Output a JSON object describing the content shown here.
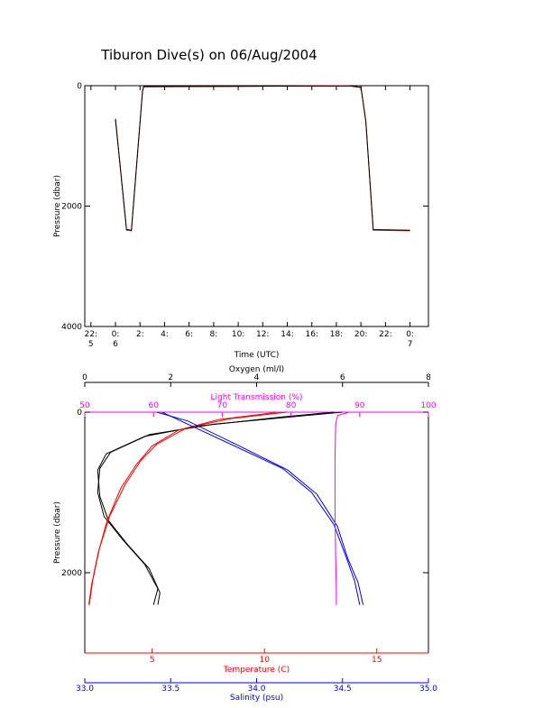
{
  "title": "Tiburon Dive(s) on 06/Aug/2004",
  "colors": {
    "axis": "#000000",
    "oxygen": "#000000",
    "temperature": "#ff0000",
    "salinity": "#0000ff",
    "transmission": "#ff00ff"
  },
  "chart_data": [
    {
      "type": "line",
      "title": "Tiburon Dive(s) on 06/Aug/2004",
      "xlabel": "Time (UTC)",
      "ylabel": "Pressure (dbar)",
      "xlim": [
        -1.5,
        26.5
      ],
      "ylim": [
        4000,
        0
      ],
      "y_inverted": true,
      "x_ticks": [
        -1,
        1,
        3,
        5,
        7,
        9,
        11,
        13,
        15,
        17,
        19,
        21,
        23,
        25
      ],
      "x_tick_labels": [
        "22:\n5",
        "0:\n6",
        "2:",
        "4:",
        "6:",
        "8:",
        "10:",
        "12:",
        "14:",
        "16:",
        "18:",
        "20:",
        "22:",
        "0:\n7"
      ],
      "y_ticks": [
        0,
        2000,
        4000
      ],
      "y_tick_labels": [
        "0",
        "2000",
        "4000"
      ],
      "series": [
        {
          "color": "#ff0000",
          "x": [
            1.0,
            1.9,
            2.3,
            3.2,
            3.3,
            20.0,
            21.0,
            21.4,
            22.0,
            25.0
          ],
          "y": [
            560,
            2400,
            2410,
            100,
            20,
            0,
            30,
            600,
            2400,
            2410
          ]
        },
        {
          "color": "#000000",
          "x": [
            1.0,
            1.9,
            2.3,
            3.2,
            3.3,
            20.0,
            21.0,
            21.4,
            22.0,
            25.0
          ],
          "y": [
            550,
            2390,
            2400,
            90,
            15,
            5,
            25,
            590,
            2390,
            2400
          ]
        }
      ]
    },
    {
      "type": "line",
      "ylabel": "Pressure (dbar)",
      "ylim": [
        3000,
        0
      ],
      "y_inverted": true,
      "y_ticks": [
        0,
        2000
      ],
      "y_tick_labels": [
        "0",
        "2000"
      ],
      "x_axes": [
        {
          "label": "Oxygen (ml/l)",
          "position": "top",
          "color": "#000000",
          "range": [
            0,
            8
          ],
          "ticks": [
            0,
            2,
            4,
            6,
            8
          ],
          "tick_labels": [
            "0",
            "2",
            "4",
            "6",
            "8"
          ]
        },
        {
          "label": "Light Transmission (%)",
          "position": "top",
          "color": "#ff00ff",
          "range": [
            50,
            100
          ],
          "ticks": [
            50,
            60,
            70,
            80,
            90,
            100
          ],
          "tick_labels": [
            "50",
            "60",
            "70",
            "80",
            "90",
            "100"
          ]
        },
        {
          "label": "Temperature (C)",
          "position": "bottom",
          "color": "#ff0000",
          "range": [
            2,
            17.3
          ],
          "ticks": [
            5,
            10,
            15
          ],
          "tick_labels": [
            "5",
            "10",
            "15"
          ]
        },
        {
          "label": "Salinity (psu)",
          "position": "bottom",
          "color": "#0000ff",
          "range": [
            33.0,
            35.0
          ],
          "ticks": [
            33.0,
            33.5,
            34.0,
            34.5,
            35.0
          ],
          "tick_labels": [
            "33.0",
            "33.5",
            "34.0",
            "34.5",
            "35.0"
          ]
        }
      ],
      "series": [
        {
          "color": "#000000",
          "axis": "Oxygen (ml/l)",
          "x": [
            6.0,
            5.0,
            3.0,
            1.5,
            0.6,
            0.35,
            0.3,
            0.45,
            0.9,
            1.4,
            1.7,
            1.6
          ],
          "y": [
            0,
            50,
            150,
            280,
            500,
            700,
            1000,
            1300,
            1600,
            1900,
            2200,
            2400
          ]
        },
        {
          "color": "#000000",
          "axis": "Oxygen (ml/l)",
          "x": [
            5.8,
            4.6,
            2.7,
            1.4,
            0.5,
            0.3,
            0.35,
            0.55,
            1.0,
            1.5,
            1.75,
            1.7
          ],
          "y": [
            0,
            60,
            170,
            300,
            520,
            720,
            1050,
            1350,
            1650,
            1950,
            2250,
            2400
          ]
        },
        {
          "color": "#ff0000",
          "axis": "Temperature (C)",
          "x": [
            11.0,
            8.5,
            6.5,
            5.2,
            4.5,
            3.8,
            3.1,
            2.65,
            2.35,
            2.2
          ],
          "y": [
            0,
            80,
            200,
            400,
            600,
            900,
            1300,
            1700,
            2100,
            2400
          ]
        },
        {
          "color": "#ff0000",
          "axis": "Temperature (C)",
          "x": [
            10.6,
            8.0,
            6.2,
            5.0,
            4.3,
            3.6,
            3.0,
            2.6,
            2.3,
            2.18
          ],
          "y": [
            0,
            90,
            220,
            420,
            650,
            950,
            1350,
            1750,
            2150,
            2400
          ]
        },
        {
          "color": "#0000ff",
          "axis": "Salinity (psu)",
          "x": [
            33.45,
            33.55,
            33.85,
            34.15,
            34.32,
            34.45,
            34.52,
            34.57,
            34.6
          ],
          "y": [
            0,
            100,
            400,
            700,
            1000,
            1400,
            1800,
            2100,
            2400
          ]
        },
        {
          "color": "#0000ff",
          "axis": "Salinity (psu)",
          "x": [
            33.42,
            33.6,
            33.9,
            34.18,
            34.35,
            34.47,
            34.53,
            34.59,
            34.62
          ],
          "y": [
            0,
            110,
            420,
            720,
            1020,
            1420,
            1820,
            2120,
            2400
          ]
        },
        {
          "color": "#ff00ff",
          "axis": "Light Transmission (%)",
          "x": [
            88.5,
            86.8,
            86.5,
            86.4,
            86.4,
            86.5,
            86.6,
            86.6
          ],
          "y": [
            0,
            40,
            150,
            600,
            1200,
            1800,
            2200,
            2400
          ]
        }
      ]
    }
  ]
}
